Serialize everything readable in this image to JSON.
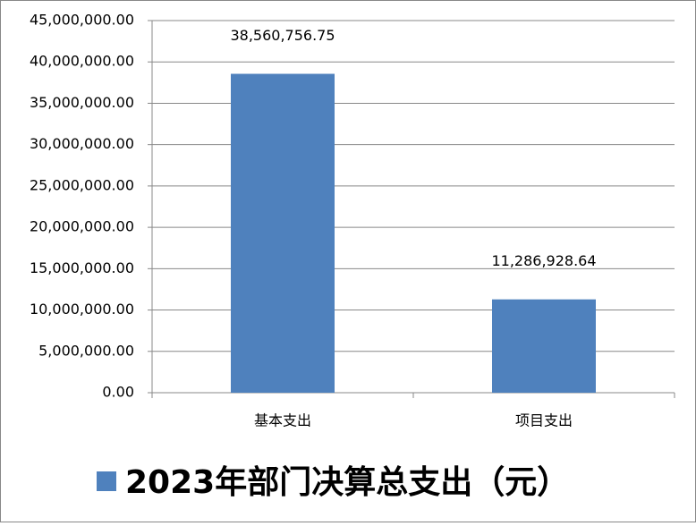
{
  "chart_data": {
    "type": "bar",
    "categories": [
      "基本支出",
      "项目支出"
    ],
    "series": [
      {
        "name": "2023年部门决算总支出（元）",
        "color": "#4f81bd",
        "values": [
          38560756.75,
          11286928.64
        ],
        "value_labels": [
          "38,560,756.75",
          "11,286,928.64"
        ]
      }
    ],
    "ylim": [
      0,
      45000000
    ],
    "yticks": [
      {
        "value": 0,
        "label": "0.00"
      },
      {
        "value": 5000000,
        "label": "5,000,000.00"
      },
      {
        "value": 10000000,
        "label": "10,000,000.00"
      },
      {
        "value": 15000000,
        "label": "15,000,000.00"
      },
      {
        "value": 20000000,
        "label": "20,000,000.00"
      },
      {
        "value": 25000000,
        "label": "25,000,000.00"
      },
      {
        "value": 30000000,
        "label": "30,000,000.00"
      },
      {
        "value": 35000000,
        "label": "35,000,000.00"
      },
      {
        "value": 40000000,
        "label": "40,000,000.00"
      },
      {
        "value": 45000000,
        "label": "45,000,000.00"
      }
    ],
    "grid": true,
    "legend": "bottom"
  }
}
